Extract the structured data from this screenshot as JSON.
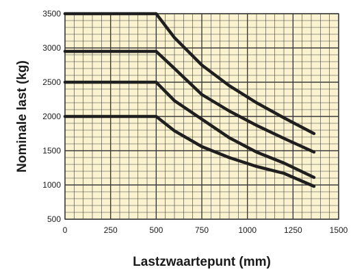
{
  "colors": {
    "plot_background": "#fbf3cf",
    "grid": "#3a3a3a",
    "series_line": "#1f1f1f",
    "text": "#1a1a1a"
  },
  "chart_data": {
    "type": "line",
    "title": "",
    "xlabel": "Lastzwaartepunt (mm)",
    "ylabel": "Nominale last (kg)",
    "xlim": [
      0,
      1500
    ],
    "ylim": [
      500,
      3500
    ],
    "xticks": [
      0,
      250,
      500,
      750,
      1000,
      1250,
      1500
    ],
    "yticks": [
      500,
      1000,
      1500,
      2000,
      2500,
      3000,
      3500
    ],
    "grid": true,
    "series": [
      {
        "x": [
          0,
          500,
          600,
          750,
          900,
          1050,
          1200,
          1365
        ],
        "y": [
          3500,
          3500,
          3150,
          2750,
          2450,
          2200,
          1980,
          1750
        ]
      },
      {
        "x": [
          0,
          500,
          600,
          750,
          900,
          1050,
          1200,
          1365
        ],
        "y": [
          2950,
          2950,
          2700,
          2320,
          2080,
          1870,
          1680,
          1480
        ]
      },
      {
        "x": [
          0,
          500,
          600,
          750,
          900,
          1050,
          1200,
          1365
        ],
        "y": [
          2500,
          2500,
          2230,
          1960,
          1690,
          1480,
          1320,
          1110
        ]
      },
      {
        "x": [
          0,
          500,
          600,
          750,
          900,
          1050,
          1200,
          1365
        ],
        "y": [
          2000,
          2000,
          1790,
          1560,
          1400,
          1270,
          1170,
          980
        ]
      }
    ]
  }
}
